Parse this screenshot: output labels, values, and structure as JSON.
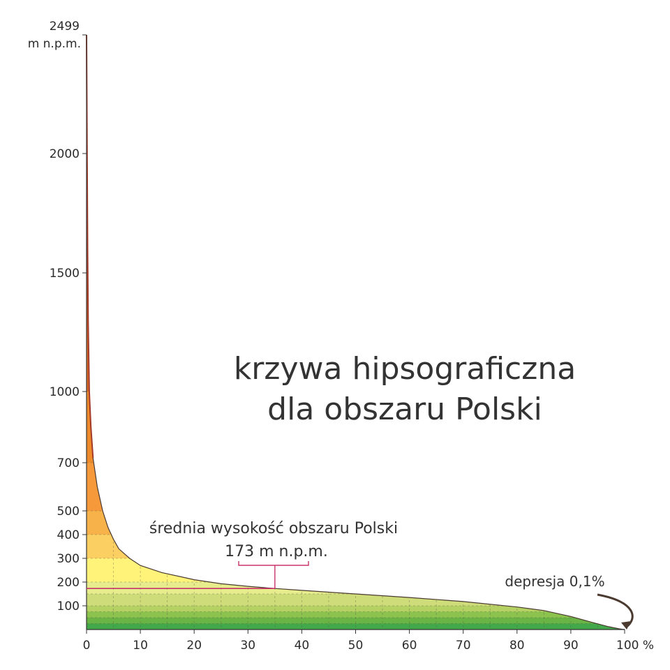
{
  "chart_data": {
    "type": "area",
    "title_lines": [
      "krzywa hipsograficzna",
      "dla obszaru Polski"
    ],
    "ylabel_top_value": "2499",
    "ylabel_top_unit": "m n.p.m.",
    "x_unit": "%",
    "xlim": [
      0,
      100
    ],
    "ylim": [
      0,
      2499
    ],
    "x_ticks": [
      0,
      10,
      20,
      30,
      40,
      50,
      60,
      70,
      80,
      90,
      100
    ],
    "x_tick_labels": [
      "0",
      "10",
      "20",
      "30",
      "40",
      "50",
      "60",
      "70",
      "80",
      "90",
      "100 %"
    ],
    "y_ticks": [
      100,
      200,
      300,
      400,
      500,
      700,
      1000,
      1500,
      2000
    ],
    "y_tick_labels": [
      "100",
      "200",
      "300",
      "400",
      "500",
      "700",
      "1000",
      "1500",
      "2000"
    ],
    "curve": {
      "x": [
        0,
        0.1,
        0.2,
        0.3,
        0.5,
        0.8,
        1.2,
        2,
        3,
        4,
        5,
        6,
        8,
        10,
        14,
        20,
        25,
        30,
        35,
        40,
        50,
        60,
        70,
        80,
        85,
        90,
        94,
        97,
        99,
        99.9,
        100
      ],
      "y": [
        2499,
        2000,
        1600,
        1300,
        1000,
        850,
        720,
        600,
        500,
        430,
        380,
        340,
        300,
        270,
        240,
        210,
        193,
        182,
        173,
        165,
        150,
        135,
        118,
        95,
        80,
        55,
        30,
        12,
        3,
        0,
        -2
      ]
    },
    "elevation_bands": [
      {
        "from": 0,
        "to": 25,
        "color": "#43a84a"
      },
      {
        "from": 25,
        "to": 50,
        "color": "#6ab445"
      },
      {
        "from": 50,
        "to": 75,
        "color": "#8cc24e"
      },
      {
        "from": 75,
        "to": 100,
        "color": "#b5d164"
      },
      {
        "from": 100,
        "to": 150,
        "color": "#cfdc7a"
      },
      {
        "from": 150,
        "to": 200,
        "color": "#e7ec8d"
      },
      {
        "from": 200,
        "to": 300,
        "color": "#fff37a"
      },
      {
        "from": 300,
        "to": 400,
        "color": "#fccf63"
      },
      {
        "from": 400,
        "to": 500,
        "color": "#f8b24a"
      },
      {
        "from": 500,
        "to": 700,
        "color": "#f5993a"
      },
      {
        "from": 700,
        "to": 1000,
        "color": "#ef8a2a"
      },
      {
        "from": 1000,
        "to": 1500,
        "color": "#e06a24"
      },
      {
        "from": 1500,
        "to": 2000,
        "color": "#cc4f24"
      },
      {
        "from": 2000,
        "to": 2499,
        "color": "#b23a24"
      }
    ],
    "mean_line": {
      "value": 173,
      "label_line1": "średnia wysokość obszaru Polski",
      "label_line2": "173 m n.p.m.",
      "color": "#c8336b"
    },
    "depression": {
      "label": "depresja 0,1%",
      "value_percent": 0.1
    },
    "grid": true
  }
}
